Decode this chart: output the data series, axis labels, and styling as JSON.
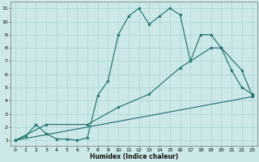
{
  "title": "",
  "xlabel": "Humidex (Indice chaleur)",
  "ylabel": "",
  "background_color": "#cce8e8",
  "grid_color": "#aad4d4",
  "line_color": "#1a6e6a",
  "xlim": [
    -0.5,
    23.5
  ],
  "ylim": [
    0.6,
    11.5
  ],
  "xticks": [
    0,
    1,
    2,
    3,
    4,
    5,
    6,
    7,
    8,
    9,
    10,
    11,
    12,
    13,
    14,
    15,
    16,
    17,
    18,
    19,
    20,
    21,
    22,
    23
  ],
  "yticks": [
    1,
    2,
    3,
    4,
    5,
    6,
    7,
    8,
    9,
    10,
    11
  ],
  "line1_x": [
    0,
    1,
    2,
    3,
    4,
    5,
    6,
    7,
    8,
    9,
    10,
    11,
    12,
    13,
    14,
    15,
    16,
    17,
    18,
    19,
    20,
    21,
    22,
    23
  ],
  "line1_y": [
    1,
    1.3,
    2.2,
    1.5,
    1.1,
    1.1,
    1.0,
    1.2,
    4.4,
    5.5,
    9.0,
    10.4,
    11.0,
    9.8,
    10.4,
    11.0,
    10.5,
    7.0,
    9.0,
    9.0,
    8.0,
    6.3,
    5.0,
    4.5
  ],
  "line2_x": [
    0,
    3,
    7,
    10,
    13,
    16,
    19,
    20,
    22,
    23
  ],
  "line2_y": [
    1,
    2.2,
    2.2,
    3.5,
    4.5,
    6.5,
    8.0,
    8.0,
    6.3,
    4.4
  ],
  "line3_x": [
    0,
    23
  ],
  "line3_y": [
    1,
    4.3
  ]
}
